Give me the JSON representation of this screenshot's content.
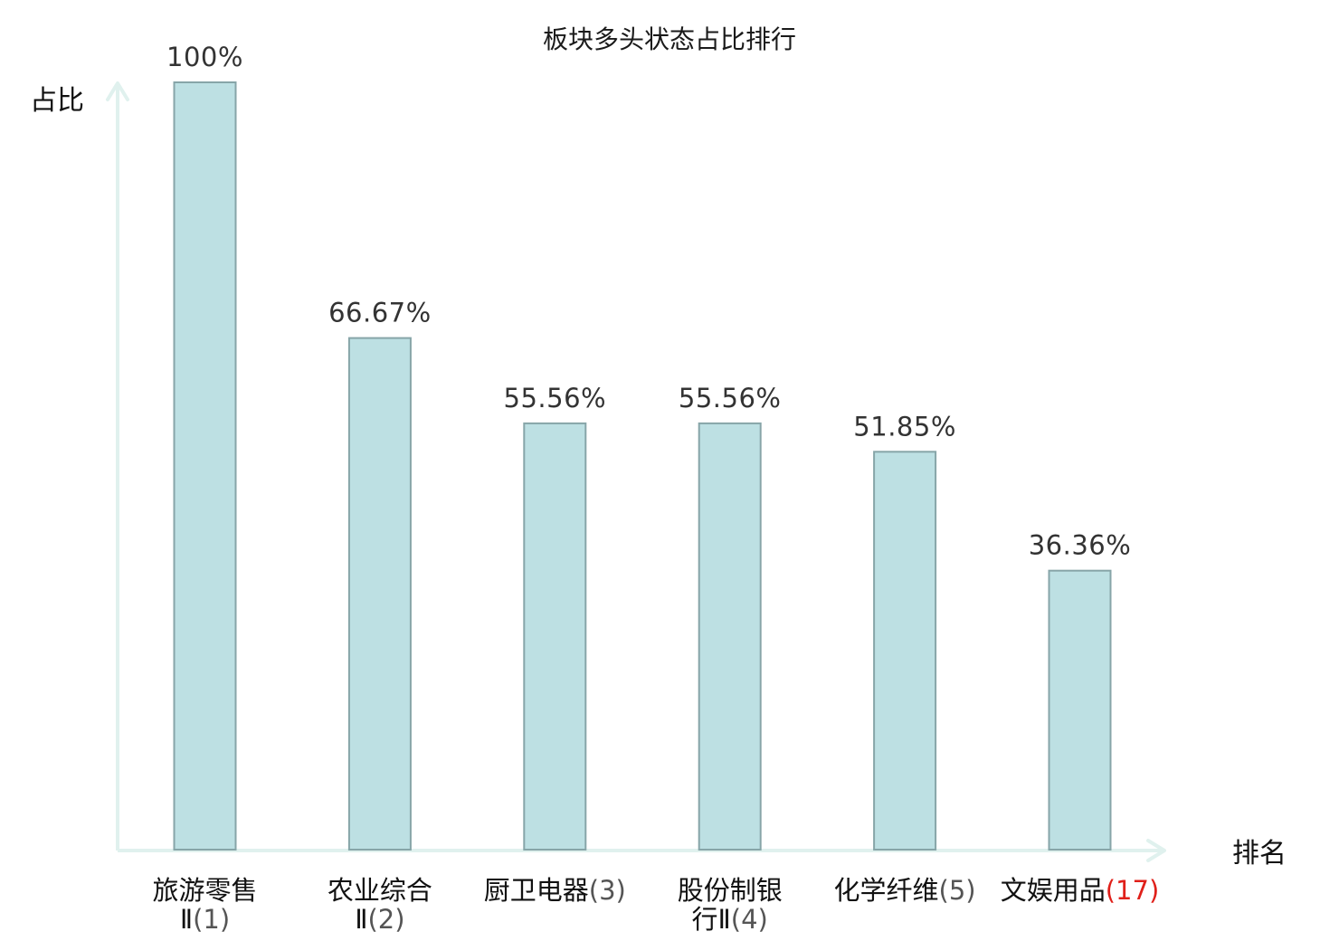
{
  "chart_data": {
    "type": "bar",
    "title": "板块多头状态占比排行",
    "ylabel": "占比",
    "xlabel": "排名",
    "ylim": [
      0,
      100
    ],
    "grid": false,
    "legend": "none",
    "categories": [
      {
        "lines": [
          {
            "name": "旅游零售"
          },
          {
            "name": "Ⅱ",
            "rank": "(1)"
          }
        ],
        "highlight": false
      },
      {
        "lines": [
          {
            "name": "农业综合"
          },
          {
            "name": "Ⅱ",
            "rank": "(2)"
          }
        ],
        "highlight": false
      },
      {
        "lines": [
          {
            "name": "厨卫电器",
            "rank": "(3)"
          }
        ],
        "highlight": false
      },
      {
        "lines": [
          {
            "name": "股份制银"
          },
          {
            "name": "行Ⅱ",
            "rank": "(4)"
          }
        ],
        "highlight": false
      },
      {
        "lines": [
          {
            "name": "化学纤维",
            "rank": "(5)"
          }
        ],
        "highlight": false
      },
      {
        "lines": [
          {
            "name": "文娱用品",
            "rank": "(17)"
          }
        ],
        "highlight": true
      }
    ],
    "values": [
      100,
      66.67,
      55.56,
      55.56,
      51.85,
      36.36
    ],
    "value_labels": [
      "100%",
      "66.67%",
      "55.56%",
      "55.56%",
      "51.85%",
      "36.36%"
    ],
    "colors": {
      "bar_fill": "#bde0e3",
      "bar_stroke": "#87a5a8",
      "axis": "#e0f1ee",
      "highlight_text": "#e0201a",
      "rank_text": "#555555",
      "label_text": "#111111",
      "value_text": "#333333"
    }
  }
}
